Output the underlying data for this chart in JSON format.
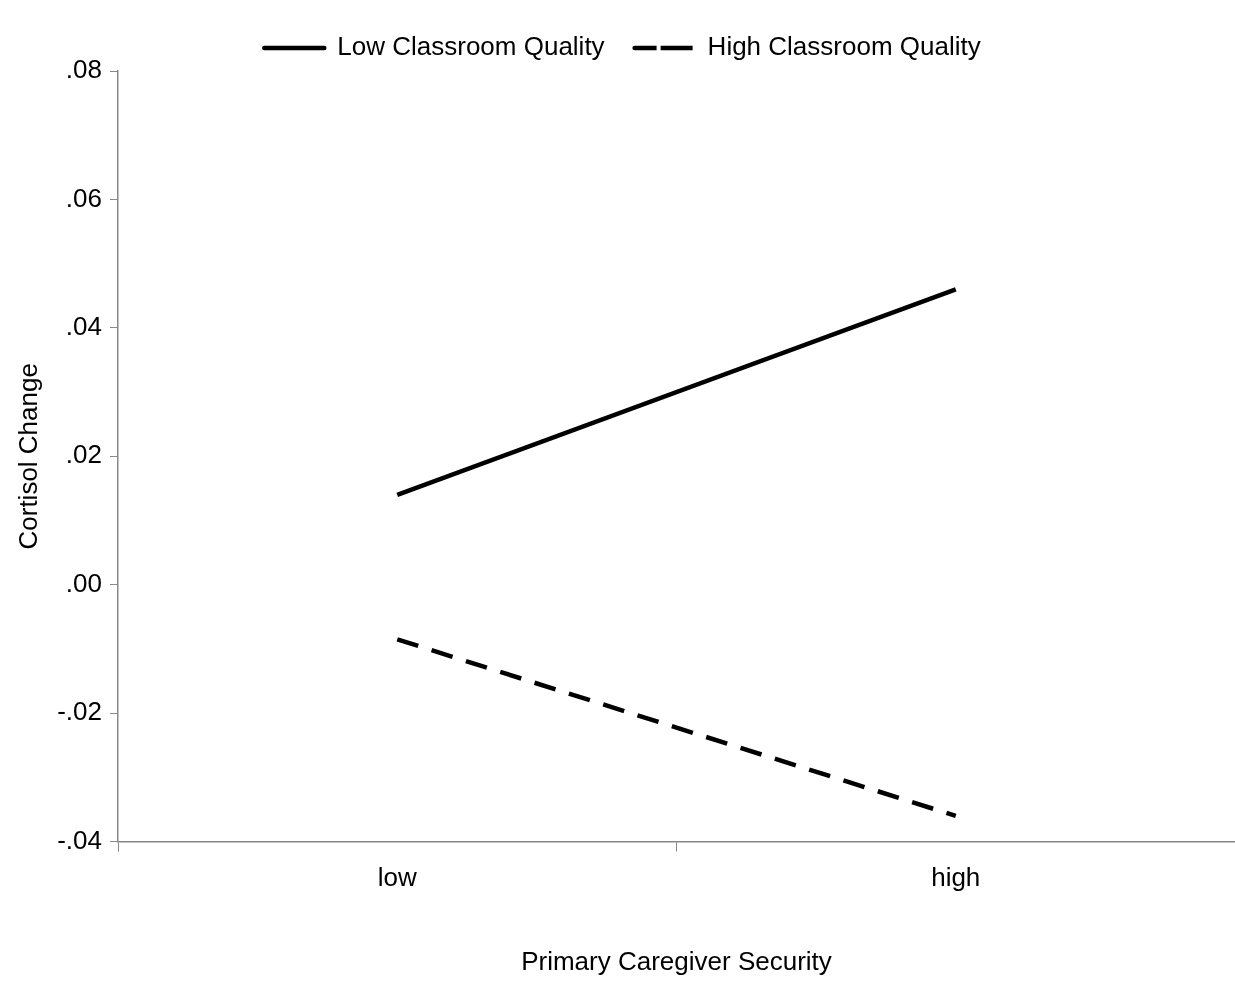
{
  "chart_data": {
    "type": "line",
    "xlabel": "Primary Caregiver Security",
    "ylabel": "Cortisol Change",
    "categories": [
      "low",
      "high"
    ],
    "series": [
      {
        "name": "Low Classroom Quality",
        "color": "#000000",
        "values": [
          0.014,
          0.046
        ],
        "line_style": "solid"
      },
      {
        "name": "High Classroom Quality",
        "color": "#000000",
        "values": [
          -0.0085,
          -0.036
        ],
        "line_style": "dashed"
      }
    ],
    "ylim": [
      -0.04,
      0.08
    ],
    "yticks": [
      {
        "value": -0.04,
        "label": "-.04"
      },
      {
        "value": -0.02,
        "label": "-.02"
      },
      {
        "value": 0,
        "label": ".00"
      },
      {
        "value": 0.02,
        "label": ".02"
      },
      {
        "value": 0.04,
        "label": ".04"
      },
      {
        "value": 0.06,
        "label": ".06"
      },
      {
        "value": 0.08,
        "label": ".08"
      }
    ],
    "grid": false,
    "legend": "top",
    "marker": "none"
  }
}
